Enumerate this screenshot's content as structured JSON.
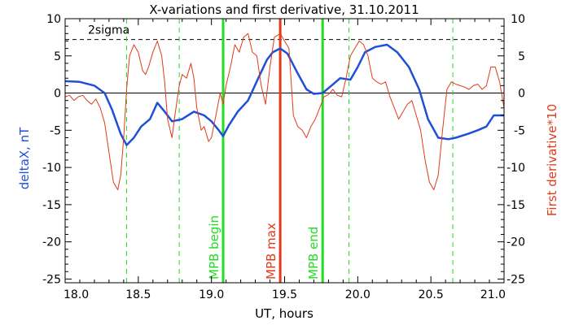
{
  "chart_data": {
    "type": "line",
    "title": "X-variations and first derivative, 31.10.2011",
    "xlabel": "UT, hours",
    "ylabel_left": "deltaX, nT",
    "ylabel_right": "First derivative*10",
    "xlim": [
      18.0,
      21.0
    ],
    "ylim": [
      -25.5,
      10.0
    ],
    "x_ticks": [
      "18.0",
      "18.5",
      "19.0",
      "19.5",
      "20.0",
      "20.5",
      "21.0"
    ],
    "y_ticks": [
      "10",
      "5",
      "0",
      "-5",
      "-10",
      "-15",
      "-20",
      "-25"
    ],
    "colors": {
      "deltaX": "#1f4fd8",
      "derivative": "#e23a1a",
      "mpb_lines": "#22dd22",
      "mpb_max": "#e23a1a",
      "threshold": "#000000"
    },
    "threshold": {
      "label": "2sigma",
      "value": 7.2
    },
    "zero_line": 0,
    "dashed_markers_x": [
      18.42,
      18.78,
      19.94,
      20.65
    ],
    "vertical_markers": [
      {
        "x": 19.08,
        "label": "MPB begin",
        "color": "#22dd22"
      },
      {
        "x": 19.47,
        "label": "MPB max",
        "color": "#e23a1a"
      },
      {
        "x": 19.76,
        "label": "MPB end",
        "color": "#22dd22"
      }
    ],
    "series": [
      {
        "name": "deltaX",
        "x": [
          18.0,
          18.1,
          18.2,
          18.27,
          18.32,
          18.38,
          18.42,
          18.47,
          18.52,
          18.58,
          18.63,
          18.68,
          18.73,
          18.8,
          18.88,
          18.95,
          19.0,
          19.05,
          19.08,
          19.12,
          19.18,
          19.25,
          19.32,
          19.38,
          19.42,
          19.47,
          19.52,
          19.58,
          19.65,
          19.7,
          19.76,
          19.82,
          19.88,
          19.95,
          20.0,
          20.05,
          20.12,
          20.2,
          20.27,
          20.35,
          20.42,
          20.48,
          20.55,
          20.62,
          20.67,
          20.75,
          20.82,
          20.88,
          20.93,
          21.0
        ],
        "values": [
          1.6,
          1.5,
          1.0,
          0.0,
          -2.2,
          -5.5,
          -7.0,
          -6.0,
          -4.5,
          -3.5,
          -1.3,
          -2.5,
          -3.8,
          -3.5,
          -2.5,
          -3.0,
          -3.8,
          -5.0,
          -5.8,
          -4.3,
          -2.5,
          -1.0,
          2.0,
          4.5,
          5.5,
          6.0,
          5.3,
          3.0,
          0.5,
          -0.1,
          0.0,
          1.0,
          2.0,
          1.8,
          3.5,
          5.5,
          6.2,
          6.5,
          5.5,
          3.5,
          0.5,
          -3.5,
          -6.0,
          -6.2,
          -6.0,
          -5.5,
          -5.0,
          -4.5,
          -3.0,
          -3.0
        ]
      },
      {
        "name": "First derivative*10",
        "x": [
          18.0,
          18.03,
          18.06,
          18.09,
          18.12,
          18.15,
          18.18,
          18.21,
          18.24,
          18.27,
          18.3,
          18.33,
          18.36,
          18.38,
          18.4,
          18.42,
          18.44,
          18.47,
          18.5,
          18.53,
          18.55,
          18.57,
          18.6,
          18.63,
          18.66,
          18.68,
          18.7,
          18.73,
          18.75,
          18.78,
          18.8,
          18.83,
          18.86,
          18.88,
          18.9,
          18.93,
          18.95,
          18.98,
          19.0,
          19.02,
          19.04,
          19.06,
          19.08,
          19.1,
          19.13,
          19.16,
          19.19,
          19.22,
          19.25,
          19.28,
          19.31,
          19.34,
          19.37,
          19.4,
          19.43,
          19.47,
          19.5,
          19.53,
          19.56,
          19.59,
          19.62,
          19.65,
          19.68,
          19.71,
          19.74,
          19.77,
          19.8,
          19.83,
          19.86,
          19.89,
          19.92,
          19.95,
          19.98,
          20.01,
          20.04,
          20.07,
          20.1,
          20.13,
          20.16,
          20.19,
          20.22,
          20.25,
          20.28,
          20.31,
          20.34,
          20.37,
          20.4,
          20.43,
          20.46,
          20.49,
          20.52,
          20.55,
          20.58,
          20.61,
          20.64,
          20.67,
          20.7,
          20.73,
          20.76,
          20.79,
          20.82,
          20.85,
          20.88,
          20.91,
          20.94,
          20.97,
          21.0
        ],
        "values": [
          -0.5,
          -0.3,
          -1.0,
          -0.5,
          -0.3,
          -1.0,
          -1.5,
          -0.8,
          -2.0,
          -4.0,
          -8.0,
          -12.0,
          -13.0,
          -11.0,
          -6.0,
          0.5,
          5.0,
          6.5,
          5.5,
          3.0,
          2.5,
          3.5,
          5.5,
          7.0,
          5.0,
          1.5,
          -3.5,
          -6.0,
          -3.0,
          1.0,
          2.5,
          2.0,
          4.0,
          2.0,
          -2.0,
          -5.0,
          -4.5,
          -6.5,
          -6.0,
          -4.0,
          -2.0,
          0.0,
          -1.5,
          1.0,
          3.5,
          6.5,
          5.5,
          7.5,
          8.0,
          5.5,
          5.0,
          1.0,
          -1.5,
          3.5,
          7.5,
          8.0,
          7.0,
          6.0,
          -3.0,
          -4.5,
          -5.0,
          -6.0,
          -4.5,
          -3.5,
          -2.0,
          -0.5,
          -0.2,
          0.5,
          -0.3,
          -0.5,
          2.0,
          5.0,
          6.0,
          7.0,
          6.5,
          5.0,
          2.0,
          1.5,
          1.2,
          1.5,
          -0.5,
          -2.0,
          -3.5,
          -2.5,
          -1.5,
          -1.0,
          -3.0,
          -5.0,
          -9.0,
          -12.0,
          -13.0,
          -11.0,
          -5.0,
          0.5,
          1.5,
          1.2,
          1.0,
          0.8,
          0.5,
          1.0,
          1.2,
          0.5,
          1.0,
          3.5,
          3.5,
          1.5,
          -2.0
        ]
      }
    ]
  }
}
